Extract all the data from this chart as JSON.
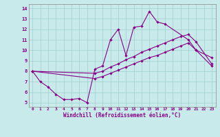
{
  "xlabel": "Windchill (Refroidissement éolien,°C)",
  "bg_color": "#c8eaea",
  "line_color": "#880088",
  "grid_color": "#a0cccc",
  "x_ticks": [
    0,
    1,
    2,
    3,
    4,
    5,
    6,
    7,
    8,
    9,
    10,
    11,
    12,
    13,
    14,
    15,
    16,
    17,
    18,
    19,
    20,
    21,
    22,
    23
  ],
  "y_ticks": [
    5,
    6,
    7,
    8,
    9,
    10,
    11,
    12,
    13,
    14
  ],
  "xlim": [
    0,
    23
  ],
  "ylim": [
    4.6,
    14.4
  ],
  "line1_x": [
    0,
    1,
    2,
    3,
    4,
    5,
    6,
    7,
    8,
    9,
    10,
    11,
    12,
    13,
    14,
    15,
    16,
    17,
    20,
    21,
    23
  ],
  "line1_y": [
    8.0,
    7.0,
    6.5,
    5.8,
    5.3,
    5.3,
    5.4,
    5.0,
    8.2,
    8.5,
    11.0,
    12.0,
    9.5,
    12.2,
    12.3,
    13.7,
    12.7,
    12.5,
    11.0,
    10.0,
    9.3
  ],
  "line2_x": [
    0,
    8,
    9,
    10,
    11,
    12,
    13,
    14,
    15,
    16,
    17,
    18,
    19,
    20,
    21,
    23
  ],
  "line2_y": [
    8.0,
    7.8,
    8.0,
    8.4,
    8.7,
    9.1,
    9.4,
    9.8,
    10.1,
    10.4,
    10.7,
    11.0,
    11.3,
    11.5,
    10.8,
    8.7
  ],
  "line3_x": [
    0,
    8,
    9,
    10,
    11,
    12,
    13,
    14,
    15,
    16,
    17,
    18,
    19,
    20,
    21,
    23
  ],
  "line3_y": [
    8.0,
    7.3,
    7.5,
    7.8,
    8.1,
    8.4,
    8.7,
    9.0,
    9.3,
    9.5,
    9.8,
    10.1,
    10.4,
    10.7,
    10.0,
    8.5
  ]
}
